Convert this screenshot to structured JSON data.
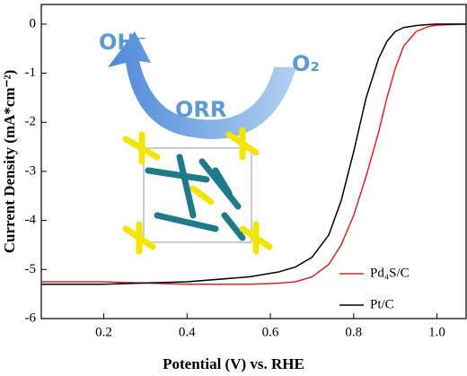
{
  "chart_data": {
    "type": "line",
    "x_label": "Potential (V) vs. RHE",
    "y_label": "Current Density (mA*cm⁻²)",
    "annotations": [
      "OH⁻",
      "O₂",
      "ORR"
    ],
    "x": [
      0.05,
      0.2,
      0.4,
      0.55,
      0.62,
      0.66,
      0.7,
      0.74,
      0.77,
      0.8,
      0.83,
      0.86,
      0.88,
      0.9,
      0.92,
      0.95,
      0.98,
      1.0,
      1.07
    ],
    "series": [
      {
        "name": "Pd₄S/C",
        "color": "#d62728",
        "values": [
          -5.25,
          -5.25,
          -5.3,
          -5.3,
          -5.28,
          -5.25,
          -5.15,
          -4.9,
          -4.5,
          -3.9,
          -3.1,
          -2.2,
          -1.5,
          -0.9,
          -0.45,
          -0.15,
          -0.05,
          -0.02,
          0
        ]
      },
      {
        "name": "Pt/C",
        "color": "#000000",
        "values": [
          -5.3,
          -5.3,
          -5.25,
          -5.15,
          -5.05,
          -4.95,
          -4.75,
          -4.3,
          -3.6,
          -2.6,
          -1.5,
          -0.7,
          -0.35,
          -0.15,
          -0.07,
          -0.03,
          -0.01,
          0,
          0
        ]
      }
    ],
    "xlim": [
      0.05,
      1.07
    ],
    "ylim": [
      -6,
      0.4
    ],
    "xticks": [
      0.2,
      0.4,
      0.6,
      0.8,
      {
        "value": 1,
        "label": "1.0"
      }
    ],
    "yticks": [
      0,
      -1,
      -2,
      -3,
      -4,
      -5,
      -6
    ],
    "legend": "lower right"
  }
}
